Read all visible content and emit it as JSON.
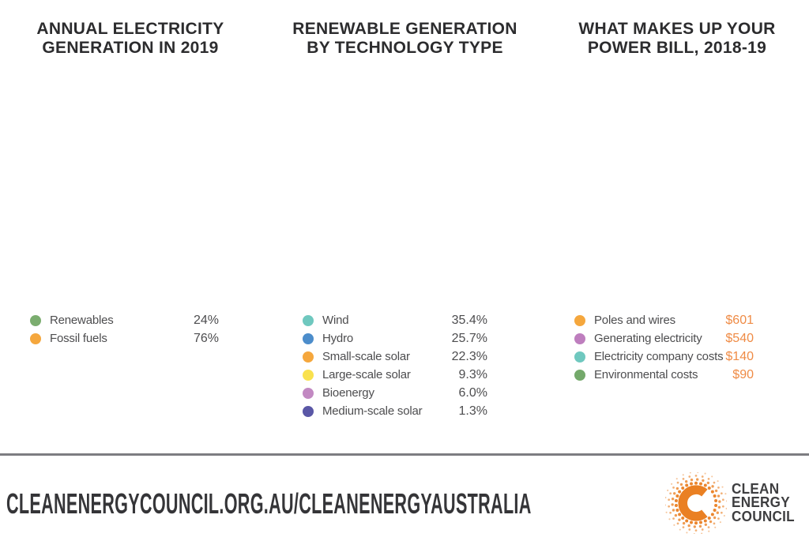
{
  "charts": [
    {
      "title_line1": "ANNUAL ELECTRICITY",
      "title_line2": "GENERATION IN 2019",
      "value_color": "#4d4d4f",
      "items": [
        {
          "label": "Renewables",
          "display": "24%",
          "value": 24,
          "color": "#7bad6f"
        },
        {
          "label": "Fossil fuels",
          "display": "76%",
          "value": 76,
          "color": "#f5a73d"
        }
      ]
    },
    {
      "title_line1": "RENEWABLE GENERATION",
      "title_line2": "BY TECHNOLOGY TYPE",
      "value_color": "#4d4d4f",
      "items": [
        {
          "label": "Wind",
          "display": "35.4%",
          "value": 35.4,
          "color": "#6fc8bf"
        },
        {
          "label": "Hydro",
          "display": "25.7%",
          "value": 25.7,
          "color": "#4c8dcb"
        },
        {
          "label": "Small-scale solar",
          "display": "22.3%",
          "value": 22.3,
          "color": "#f5a73d"
        },
        {
          "label": "Large-scale solar",
          "display": "9.3%",
          "value": 9.3,
          "color": "#f9e14e"
        },
        {
          "label": "Bioenergy",
          "display": "6.0%",
          "value": 6.0,
          "color": "#c289c2"
        },
        {
          "label": "Medium-scale solar",
          "display": "1.3%",
          "value": 1.3,
          "color": "#5a57a6"
        }
      ]
    },
    {
      "title_line1": "WHAT MAKES UP YOUR",
      "title_line2": "POWER BILL, 2018-19",
      "value_color": "#ef8b45",
      "items": [
        {
          "label": "Poles and wires",
          "display": "$601",
          "value": 601,
          "color": "#f5a73d"
        },
        {
          "label": "Generating electricity",
          "display": "$540",
          "value": 540,
          "color": "#be7ebe"
        },
        {
          "label": "Electricity company costs",
          "display": "$140",
          "value": 140,
          "color": "#6fc8bf"
        },
        {
          "label": "Environmental costs",
          "display": "$90",
          "value": 90,
          "color": "#74a96b"
        }
      ]
    }
  ],
  "footer": {
    "url": "CLEANENERGYCOUNCIL.ORG.AU/CLEANENERGYAUSTRALIA",
    "logo": {
      "line1": "CLEAN",
      "line2": "ENERGY",
      "line3": "COUNCIL",
      "accent_color": "#ea8023"
    }
  },
  "chart_data": [
    {
      "type": "pie",
      "donut": true,
      "title": "ANNUAL ELECTRICITY GENERATION IN 2019",
      "categories": [
        "Renewables",
        "Fossil fuels"
      ],
      "values": [
        24,
        76
      ],
      "value_labels": [
        "24%",
        "76%"
      ],
      "unit": "%",
      "start_angle": "top",
      "direction": "clockwise",
      "legend_position": "bottom"
    },
    {
      "type": "pie",
      "donut": true,
      "title": "RENEWABLE GENERATION BY TECHNOLOGY TYPE",
      "categories": [
        "Wind",
        "Hydro",
        "Small-scale solar",
        "Large-scale solar",
        "Bioenergy",
        "Medium-scale solar"
      ],
      "values": [
        35.4,
        25.7,
        22.3,
        9.3,
        6.0,
        1.3
      ],
      "value_labels": [
        "35.4%",
        "25.7%",
        "22.3%",
        "9.3%",
        "6.0%",
        "1.3%"
      ],
      "unit": "%",
      "start_angle": "top",
      "direction": "clockwise",
      "legend_position": "bottom"
    },
    {
      "type": "pie",
      "donut": true,
      "title": "WHAT MAKES UP YOUR POWER BILL, 2018-19",
      "categories": [
        "Poles and wires",
        "Generating electricity",
        "Electricity company costs",
        "Environmental costs"
      ],
      "values": [
        601,
        540,
        140,
        90
      ],
      "value_labels": [
        "$601",
        "$540",
        "$140",
        "$90"
      ],
      "unit": "$",
      "start_angle": "top",
      "direction": "clockwise",
      "legend_position": "bottom"
    }
  ]
}
